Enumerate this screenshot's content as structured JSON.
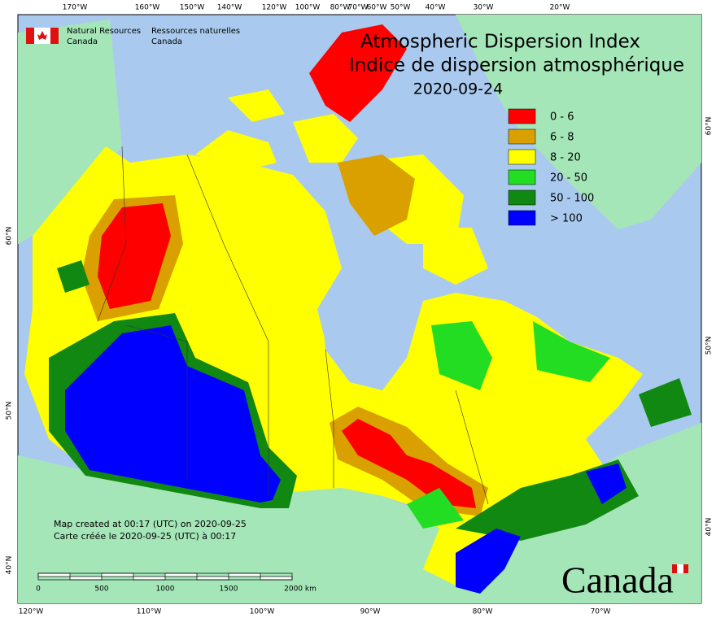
{
  "header": {
    "en_line1": "Natural Resources",
    "en_line2": "Canada",
    "fr_line1": "Ressources naturelles",
    "fr_line2": "Canada"
  },
  "title": {
    "line1": "Atmospheric Dispersion Index",
    "line2": "Indice de dispersion atmosphérique",
    "date": "2020-09-24"
  },
  "legend": {
    "items": [
      {
        "label": "0 - 6",
        "color": "#ff0000"
      },
      {
        "label": "6 - 8",
        "color": "#d9a000"
      },
      {
        "label": "8 - 20",
        "color": "#ffff00"
      },
      {
        "label": "20 - 50",
        "color": "#22dd22"
      },
      {
        "label": "50 - 100",
        "color": "#118811"
      },
      {
        "label": "> 100",
        "color": "#0000ff"
      }
    ]
  },
  "graticule": {
    "top": [
      "170°W",
      "160°W",
      "150°W",
      "140°W",
      "120°W",
      "100°W",
      "80°W",
      "70°W",
      "60°W",
      "50°W",
      "40°W",
      "30°W",
      "20°W"
    ],
    "bottom": [
      "120°W",
      "110°W",
      "100°W",
      "90°W",
      "80°W",
      "70°W"
    ],
    "left": [
      "60°N",
      "50°N",
      "40°N"
    ],
    "right": [
      "60°N",
      "50°N",
      "40°N"
    ]
  },
  "notes": [
    "Map created at 00:17 (UTC) on 2020-09-25",
    "Carte créée le 2020-09-25 (UTC) à 00:17"
  ],
  "scale_bar": {
    "labels": [
      "0",
      "500",
      "1000",
      "1500",
      "2000 km"
    ]
  },
  "wordmark": "Canada"
}
